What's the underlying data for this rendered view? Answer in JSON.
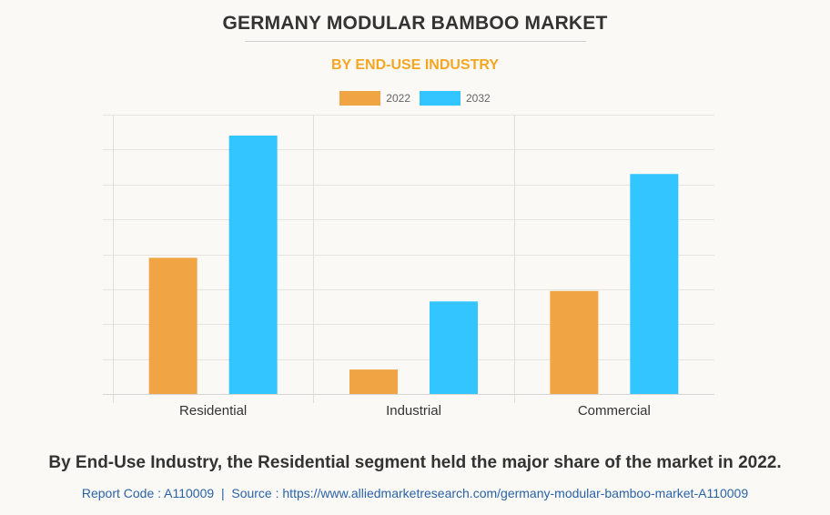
{
  "header": {
    "title": "GERMANY MODULAR BAMBOO MARKET",
    "subtitle": "BY END-USE INDUSTRY"
  },
  "footer": {
    "caption": "By End-Use Industry, the Residential segment held the major share of the market in 2022.",
    "report_code": "Report Code : A110009",
    "separator": "|",
    "source": "Source : https://www.alliedmarketresearch.com/germany-modular-bamboo-market-A110009"
  },
  "colors": {
    "series_2022": "#f0a444",
    "series_2032": "#33c5ff",
    "title": "#333333",
    "subtitle": "#f5a623",
    "link": "#2a62a8"
  },
  "chart_data": {
    "type": "bar",
    "title": "GERMANY MODULAR BAMBOO MARKET",
    "subtitle": "BY END-USE INDUSTRY",
    "xlabel": "",
    "ylabel": "",
    "categories": [
      "Residential",
      "Industrial",
      "Commercial"
    ],
    "series": [
      {
        "name": "2022",
        "values": [
          3.9,
          0.7,
          2.95
        ]
      },
      {
        "name": "2032",
        "values": [
          7.4,
          2.65,
          6.3
        ]
      }
    ],
    "ylim": [
      0,
      8
    ],
    "y_gridlines": 8,
    "y_tick_labels_shown": false,
    "grid": true,
    "legend": "top-center",
    "value_units": "relative (no axis values shown)"
  }
}
